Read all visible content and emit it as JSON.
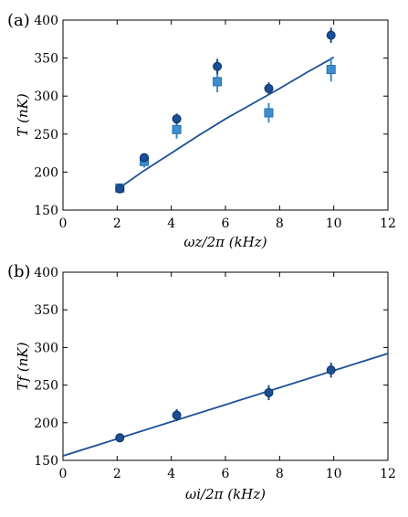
{
  "chart_data": [
    {
      "type": "scatter",
      "panel_label": "(a)",
      "xlabel": "ωz/2π (kHz)",
      "ylabel": "T (nK)",
      "xlim": [
        0,
        12
      ],
      "ylim": [
        150,
        400
      ],
      "xticks": [
        0,
        2,
        4,
        6,
        8,
        10,
        12
      ],
      "yticks": [
        150,
        200,
        250,
        300,
        350,
        400
      ],
      "grid": false,
      "series": [
        {
          "marker": "circle",
          "color": "#1a4f95",
          "points": [
            {
              "x": 2.1,
              "y": 178,
              "err": 4
            },
            {
              "x": 3.0,
              "y": 219,
              "err": 5
            },
            {
              "x": 4.2,
              "y": 270,
              "err": 7
            },
            {
              "x": 5.7,
              "y": 339,
              "err": 10
            },
            {
              "x": 7.6,
              "y": 310,
              "err": 8
            },
            {
              "x": 9.9,
              "y": 380,
              "err": 10
            }
          ]
        },
        {
          "marker": "square",
          "color": "#3c8fd0",
          "points": [
            {
              "x": 2.1,
              "y": 179,
              "err": 6
            },
            {
              "x": 3.0,
              "y": 214,
              "err": 8
            },
            {
              "x": 4.2,
              "y": 256,
              "err": 12
            },
            {
              "x": 5.7,
              "y": 319,
              "err": 14
            },
            {
              "x": 7.6,
              "y": 278,
              "err": 13
            },
            {
              "x": 9.9,
              "y": 335,
              "err": 16
            }
          ]
        }
      ],
      "fit_line": {
        "color": "#1a4f95",
        "x": [
          2.0,
          3.0,
          4.0,
          5.0,
          6.0,
          7.0,
          8.0,
          9.0,
          10.0
        ],
        "y": [
          177,
          202,
          225,
          248,
          270,
          290,
          310,
          331,
          351
        ]
      }
    },
    {
      "type": "scatter",
      "panel_label": "(b)",
      "xlabel": "ωi/2π (kHz)",
      "ylabel": "Tf (nK)",
      "xlim": [
        0,
        12
      ],
      "ylim": [
        150,
        400
      ],
      "xticks": [
        0,
        2,
        4,
        6,
        8,
        10,
        12
      ],
      "yticks": [
        150,
        200,
        250,
        300,
        350,
        400
      ],
      "grid": false,
      "series": [
        {
          "marker": "circle",
          "color": "#1a4f95",
          "points": [
            {
              "x": 2.1,
              "y": 180,
              "err": 3
            },
            {
              "x": 4.2,
              "y": 210,
              "err": 8
            },
            {
              "x": 7.6,
              "y": 240,
              "err": 10
            },
            {
              "x": 9.9,
              "y": 270,
              "err": 10
            }
          ]
        }
      ],
      "fit_line": {
        "color": "#1a4f95",
        "x": [
          0,
          12
        ],
        "y": [
          156,
          292
        ]
      }
    }
  ]
}
